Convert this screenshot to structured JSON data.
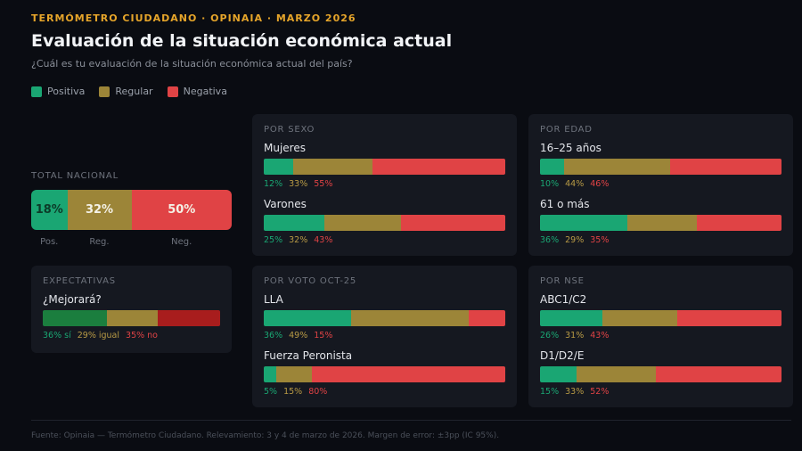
{
  "header": {
    "kicker": "TERMÓMETRO CIUDADANO · OPINAIA · MARZO 2026",
    "title": "Evaluación de la situación económica actual",
    "subtitle": "¿Cuál es tu evaluación de la situación económica actual del país?"
  },
  "colors": {
    "positiva": "#1aa673",
    "regular": "#9c8538",
    "negativa": "#e04345",
    "exp_si": "#1b7e3e",
    "exp_igual": "#9c8538",
    "exp_no": "#a81d1d"
  },
  "legend": [
    {
      "label": "Positiva",
      "key": "positiva"
    },
    {
      "label": "Regular",
      "key": "regular"
    },
    {
      "label": "Negativa",
      "key": "negativa"
    }
  ],
  "chart_data": {
    "type": "bar",
    "stacked": true,
    "orientation": "horizontal",
    "total": {
      "label": "TOTAL NACIONAL",
      "values": [
        18,
        32,
        50
      ],
      "value_labels": [
        "18%",
        "32%",
        "50%"
      ],
      "axis_labels": [
        "Pos.",
        "Reg.",
        "Neg."
      ]
    },
    "expectativas": {
      "label": "EXPECTATIVAS",
      "question": "¿Mejorará?",
      "values": [
        36,
        29,
        35
      ],
      "value_labels": [
        "36% sí",
        "29% igual",
        "35% no"
      ]
    },
    "groups": [
      {
        "label": "POR SEXO",
        "segments": [
          {
            "name": "Mujeres",
            "values": [
              12,
              33,
              55
            ]
          },
          {
            "name": "Varones",
            "values": [
              25,
              32,
              43
            ]
          }
        ]
      },
      {
        "label": "POR EDAD",
        "segments": [
          {
            "name": "16–25 años",
            "values": [
              10,
              44,
              46
            ]
          },
          {
            "name": "61 o más",
            "values": [
              36,
              29,
              35
            ]
          }
        ]
      },
      {
        "label": "POR VOTO OCT-25",
        "segments": [
          {
            "name": "LLA",
            "values": [
              36,
              49,
              15
            ]
          },
          {
            "name": "Fuerza Peronista",
            "values": [
              5,
              15,
              80
            ]
          }
        ]
      },
      {
        "label": "POR NSE",
        "segments": [
          {
            "name": "ABC1/C2",
            "values": [
              26,
              31,
              43
            ]
          },
          {
            "name": "D1/D2/E",
            "values": [
              15,
              33,
              52
            ]
          }
        ]
      }
    ]
  },
  "footer": "Fuente: Opinaia — Termómetro Ciudadano. Relevamiento: 3 y 4 de marzo de 2026. Margen de error: ±3pp (IC 95%)."
}
